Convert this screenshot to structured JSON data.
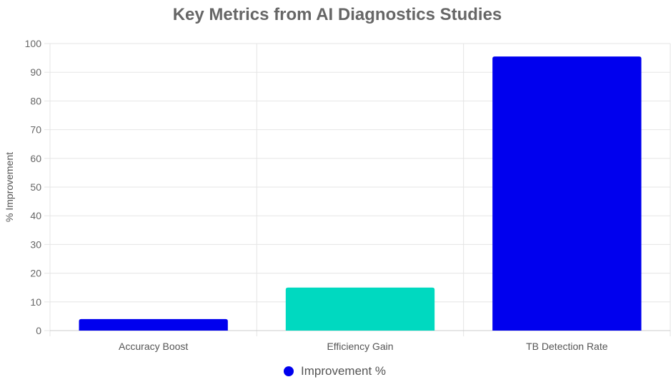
{
  "chart_data": {
    "type": "bar",
    "title": "Key Metrics from AI Diagnostics Studies",
    "xlabel": "",
    "ylabel": "% Improvement",
    "categories": [
      "Accuracy Boost",
      "Efficiency Gain",
      "TB Detection Rate"
    ],
    "series": [
      {
        "name": "Improvement %",
        "values": [
          4,
          15,
          95.5
        ],
        "colors": [
          "#0000ee",
          "#00d9c0",
          "#0000ee"
        ]
      }
    ],
    "legend_color": "#0000ee",
    "ylim": [
      0,
      100
    ],
    "yticks": [
      0,
      10,
      20,
      30,
      40,
      50,
      60,
      70,
      80,
      90,
      100
    ],
    "grid": true,
    "legend_position": "bottom-center"
  }
}
